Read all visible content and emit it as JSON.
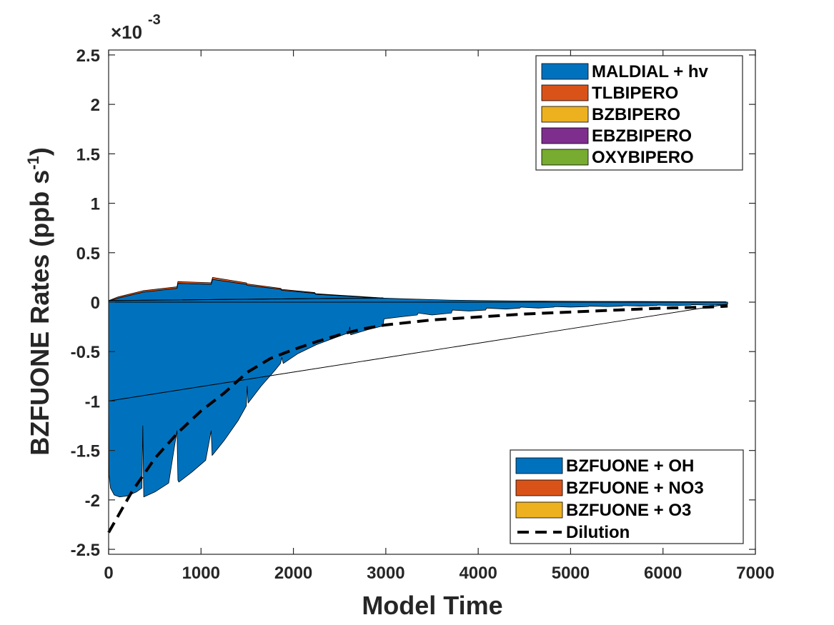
{
  "chart_data": {
    "type": "area",
    "xlabel": "Model Time",
    "ylabel": "BZFUONE Rates (ppb s",
    "ylabel_exp": "-1",
    "ylabel_close": ")",
    "y_multiplier_base": "×10",
    "y_multiplier_exp": "-3",
    "xlim": [
      0,
      7000
    ],
    "ylim": [
      -2.55,
      2.55
    ],
    "x_ticks": [
      0,
      1000,
      2000,
      3000,
      4000,
      5000,
      6000,
      7000
    ],
    "x_tick_labels": [
      "0",
      "1000",
      "2000",
      "3000",
      "4000",
      "5000",
      "6000",
      "7000"
    ],
    "y_ticks": [
      2.5,
      2,
      1.5,
      1,
      0.5,
      0,
      -0.5,
      -1,
      -1.5,
      -2,
      -2.5
    ],
    "y_tick_labels": [
      "2.5",
      "2",
      "1.5",
      "1",
      "0.5",
      "0",
      "-0.5",
      "-1",
      "-1.5",
      "-2",
      "-2.5"
    ],
    "grid": false,
    "production_legend": {
      "placement": "top-right",
      "entries": [
        {
          "name": "MALDIAL + hv",
          "color": "#0072BD"
        },
        {
          "name": "TLBIPERO",
          "color": "#D95319"
        },
        {
          "name": "BZBIPERO",
          "color": "#EDB120"
        },
        {
          "name": "EBZBIPERO",
          "color": "#7E2F8E"
        },
        {
          "name": "OXYBIPERO",
          "color": "#77AC30"
        }
      ]
    },
    "loss_legend": {
      "placement": "bottom-right",
      "entries": [
        {
          "name": "BZFUONE + OH",
          "color": "#0072BD",
          "kind": "area"
        },
        {
          "name": "BZFUONE + NO3",
          "color": "#D95319",
          "kind": "area"
        },
        {
          "name": "BZFUONE + O3",
          "color": "#EDB120",
          "kind": "area"
        },
        {
          "name": "Dilution",
          "color": "#000000",
          "kind": "dashed-line"
        }
      ]
    },
    "production_series": [
      {
        "name": "MALDIAL + hv",
        "color": "#0072BD",
        "x": [
          0,
          100,
          370,
          740,
          750,
          1110,
          1125,
          1490,
          1500,
          1860,
          1875,
          2230,
          2240,
          2600,
          2610,
          2970,
          2980,
          3340,
          3350,
          3710,
          3720,
          4080,
          4090,
          4450,
          4460,
          4820,
          4830,
          5190,
          5200,
          5560,
          5570,
          5930,
          5940,
          6300,
          6310,
          6680
        ],
        "y": [
          0.01,
          0.04,
          0.1,
          0.14,
          0.19,
          0.18,
          0.23,
          0.18,
          0.17,
          0.13,
          0.12,
          0.09,
          0.08,
          0.06,
          0.06,
          0.04,
          0.04,
          0.03,
          0.03,
          0.02,
          0.02,
          0.015,
          0.015,
          0.012,
          0.012,
          0.01,
          0.01,
          0.008,
          0.008,
          0.007,
          0.007,
          0.006,
          0.006,
          0.005,
          0.005,
          0.004
        ]
      },
      {
        "name": "TLBIPERO",
        "color": "#D95319",
        "x": [
          0,
          100,
          370,
          740,
          750,
          1110,
          1125,
          1490,
          1500,
          1860,
          1875,
          2230,
          2240,
          2600,
          2610,
          2970
        ],
        "y": [
          0.005,
          0.012,
          0.015,
          0.015,
          0.018,
          0.016,
          0.02,
          0.015,
          0.014,
          0.01,
          0.009,
          0.007,
          0.006,
          0.004,
          0.004,
          0.002
        ]
      },
      {
        "name": "BZBIPERO",
        "color": "#EDB120",
        "x": [
          0,
          2970
        ],
        "y": [
          0.001,
          0.001
        ]
      },
      {
        "name": "EBZBIPERO",
        "color": "#7E2F8E",
        "x": [
          0,
          2970
        ],
        "y": [
          0.0,
          0.0
        ]
      },
      {
        "name": "OXYBIPERO",
        "color": "#77AC30",
        "x": [
          0,
          2970
        ],
        "y": [
          0.0,
          0.0
        ]
      }
    ],
    "loss_series": [
      {
        "name": "BZFUONE + OH",
        "color": "#0072BD",
        "x": [
          0,
          5,
          20,
          60,
          120,
          200,
          300,
          360,
          370,
          380,
          500,
          650,
          740,
          750,
          760,
          900,
          1050,
          1110,
          1120,
          1130,
          1250,
          1400,
          1490,
          1500,
          1510,
          1650,
          1800,
          1860,
          1875,
          1890,
          2050,
          2250,
          2450,
          2600,
          2610,
          2620,
          2800,
          2970,
          2980,
          3150,
          3340,
          3350,
          3500,
          3710,
          3720,
          3900,
          4080,
          4090,
          4300,
          4450,
          4460,
          4650,
          4820,
          4830,
          5000,
          5190,
          5200,
          5400,
          5560,
          5570,
          5750,
          5930,
          5940,
          6100,
          6300,
          6310,
          6500,
          6680,
          6700
        ],
        "y": [
          -1.0,
          -1.75,
          -1.88,
          -1.95,
          -1.97,
          -1.96,
          -1.92,
          -1.88,
          -1.25,
          -1.97,
          -1.92,
          -1.83,
          -1.3,
          -1.8,
          -1.82,
          -1.72,
          -1.6,
          -1.3,
          -1.55,
          -1.54,
          -1.4,
          -1.2,
          -1.05,
          -0.85,
          -1.02,
          -0.85,
          -0.69,
          -0.62,
          -0.56,
          -0.62,
          -0.52,
          -0.43,
          -0.36,
          -0.31,
          -0.25,
          -0.33,
          -0.28,
          -0.24,
          -0.17,
          -0.15,
          -0.13,
          -0.11,
          -0.13,
          -0.11,
          -0.08,
          -0.09,
          -0.08,
          -0.06,
          -0.07,
          -0.06,
          -0.05,
          -0.06,
          -0.05,
          -0.045,
          -0.05,
          -0.045,
          -0.04,
          -0.045,
          -0.04,
          -0.035,
          -0.04,
          -0.035,
          -0.03,
          -0.035,
          -0.03,
          -0.025,
          -0.03,
          -0.025,
          -0.02
        ]
      },
      {
        "name": "BZFUONE + NO3",
        "color": "#D95319",
        "x": [
          0,
          6700
        ],
        "y": [
          0,
          0
        ]
      },
      {
        "name": "BZFUONE + O3",
        "color": "#EDB120",
        "x": [
          0,
          6700
        ],
        "y": [
          0,
          0
        ]
      }
    ],
    "dilution": {
      "name": "Dilution",
      "color": "#000000",
      "style": "dashed",
      "x": [
        0,
        250,
        500,
        750,
        1000,
        1250,
        1500,
        1750,
        2000,
        2250,
        2500,
        2750,
        3000,
        3500,
        4000,
        4500,
        5000,
        5500,
        6000,
        6500,
        6700
      ],
      "y": [
        -2.33,
        -1.92,
        -1.58,
        -1.32,
        -1.1,
        -0.92,
        -0.71,
        -0.57,
        -0.48,
        -0.4,
        -0.33,
        -0.27,
        -0.23,
        -0.18,
        -0.15,
        -0.12,
        -0.1,
        -0.08,
        -0.06,
        -0.05,
        -0.04
      ]
    }
  }
}
